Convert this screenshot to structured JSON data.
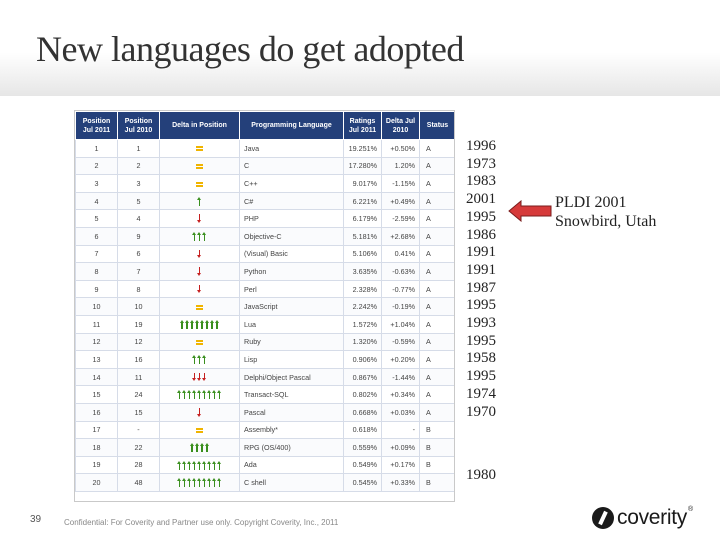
{
  "slide": {
    "title": "New languages do get adopted",
    "slide_number": "39",
    "footer": "Confidential: For Coverity and Partner use only. Copyright Coverity, Inc., 2011",
    "logo_text": "coverity",
    "logo_mark": "®"
  },
  "table": {
    "headers": [
      "Position Jul 2011",
      "Position Jul 2010",
      "Delta in Position",
      "Programming Language",
      "Ratings Jul 2011",
      "Delta Jul 2010",
      "Status"
    ],
    "rows": [
      {
        "pos2011": "1",
        "pos2010": "1",
        "delta": {
          "type": "equal",
          "count": 1
        },
        "language": "Java",
        "rating": "19.251%",
        "delta_rating": "+0.50%",
        "status": "A"
      },
      {
        "pos2011": "2",
        "pos2010": "2",
        "delta": {
          "type": "equal",
          "count": 1
        },
        "language": "C",
        "rating": "17.280%",
        "delta_rating": "1.20%",
        "status": "A"
      },
      {
        "pos2011": "3",
        "pos2010": "3",
        "delta": {
          "type": "equal",
          "count": 1
        },
        "language": "C++",
        "rating": "9.017%",
        "delta_rating": "-1.15%",
        "status": "A"
      },
      {
        "pos2011": "4",
        "pos2010": "5",
        "delta": {
          "type": "up",
          "count": 1
        },
        "language": "C#",
        "rating": "6.221%",
        "delta_rating": "+0.49%",
        "status": "A"
      },
      {
        "pos2011": "5",
        "pos2010": "4",
        "delta": {
          "type": "down",
          "count": 1
        },
        "language": "PHP",
        "rating": "6.179%",
        "delta_rating": "-2.59%",
        "status": "A"
      },
      {
        "pos2011": "6",
        "pos2010": "9",
        "delta": {
          "type": "up",
          "count": 3
        },
        "language": "Objective-C",
        "rating": "5.181%",
        "delta_rating": "+2.68%",
        "status": "A"
      },
      {
        "pos2011": "7",
        "pos2010": "6",
        "delta": {
          "type": "down",
          "count": 1
        },
        "language": "(Visual) Basic",
        "rating": "5.106%",
        "delta_rating": "0.41%",
        "status": "A"
      },
      {
        "pos2011": "8",
        "pos2010": "7",
        "delta": {
          "type": "down",
          "count": 1
        },
        "language": "Python",
        "rating": "3.635%",
        "delta_rating": "-0.63%",
        "status": "A"
      },
      {
        "pos2011": "9",
        "pos2010": "8",
        "delta": {
          "type": "down",
          "count": 1
        },
        "language": "Perl",
        "rating": "2.328%",
        "delta_rating": "-0.77%",
        "status": "A"
      },
      {
        "pos2011": "10",
        "pos2010": "10",
        "delta": {
          "type": "equal",
          "count": 1
        },
        "language": "JavaScript",
        "rating": "2.242%",
        "delta_rating": "-0.19%",
        "status": "A"
      },
      {
        "pos2011": "11",
        "pos2010": "19",
        "delta": {
          "type": "up",
          "count": 8
        },
        "language": "Lua",
        "rating": "1.572%",
        "delta_rating": "+1.04%",
        "status": "A"
      },
      {
        "pos2011": "12",
        "pos2010": "12",
        "delta": {
          "type": "equal",
          "count": 1
        },
        "language": "Ruby",
        "rating": "1.320%",
        "delta_rating": "-0.59%",
        "status": "A"
      },
      {
        "pos2011": "13",
        "pos2010": "16",
        "delta": {
          "type": "up",
          "count": 3
        },
        "language": "Lisp",
        "rating": "0.906%",
        "delta_rating": "+0.20%",
        "status": "A"
      },
      {
        "pos2011": "14",
        "pos2010": "11",
        "delta": {
          "type": "down",
          "count": 3
        },
        "language": "Delphi/Object Pascal",
        "rating": "0.867%",
        "delta_rating": "-1.44%",
        "status": "A"
      },
      {
        "pos2011": "15",
        "pos2010": "24",
        "delta": {
          "type": "up",
          "count": 9
        },
        "language": "Transact-SQL",
        "rating": "0.802%",
        "delta_rating": "+0.34%",
        "status": "A"
      },
      {
        "pos2011": "16",
        "pos2010": "15",
        "delta": {
          "type": "down",
          "count": 1
        },
        "language": "Pascal",
        "rating": "0.668%",
        "delta_rating": "+0.03%",
        "status": "A"
      },
      {
        "pos2011": "17",
        "pos2010": "-",
        "delta": {
          "type": "equal",
          "count": 1
        },
        "language": "Assembly*",
        "rating": "0.618%",
        "delta_rating": "-",
        "status": "B"
      },
      {
        "pos2011": "18",
        "pos2010": "22",
        "delta": {
          "type": "up",
          "count": 4
        },
        "language": "RPG (OS/400)",
        "rating": "0.559%",
        "delta_rating": "+0.09%",
        "status": "B"
      },
      {
        "pos2011": "19",
        "pos2010": "28",
        "delta": {
          "type": "up",
          "count": 9
        },
        "language": "Ada",
        "rating": "0.549%",
        "delta_rating": "+0.17%",
        "status": "B"
      },
      {
        "pos2011": "20",
        "pos2010": "48",
        "delta": {
          "type": "up",
          "count": 9
        },
        "language": "C shell",
        "rating": "0.545%",
        "delta_rating": "+0.33%",
        "status": "B"
      }
    ]
  },
  "years": [
    "1996",
    "1973",
    "1983",
    "2001",
    "1995",
    "1986",
    "1991",
    "1991",
    "1987",
    "1995",
    "1993",
    "1995",
    "1958",
    "1995",
    "1974",
    "1970",
    "1980"
  ],
  "callout": {
    "arrow_color": "#d63a3a",
    "arrow_border": "#7a1c1c",
    "line1": "PLDI 2001",
    "line2": "Snowbird, Utah"
  },
  "colors": {
    "header_bg": "#24407a",
    "up_arrow": "#3a8f1e",
    "down_arrow": "#c51f1f",
    "equal": "#f0b400"
  }
}
